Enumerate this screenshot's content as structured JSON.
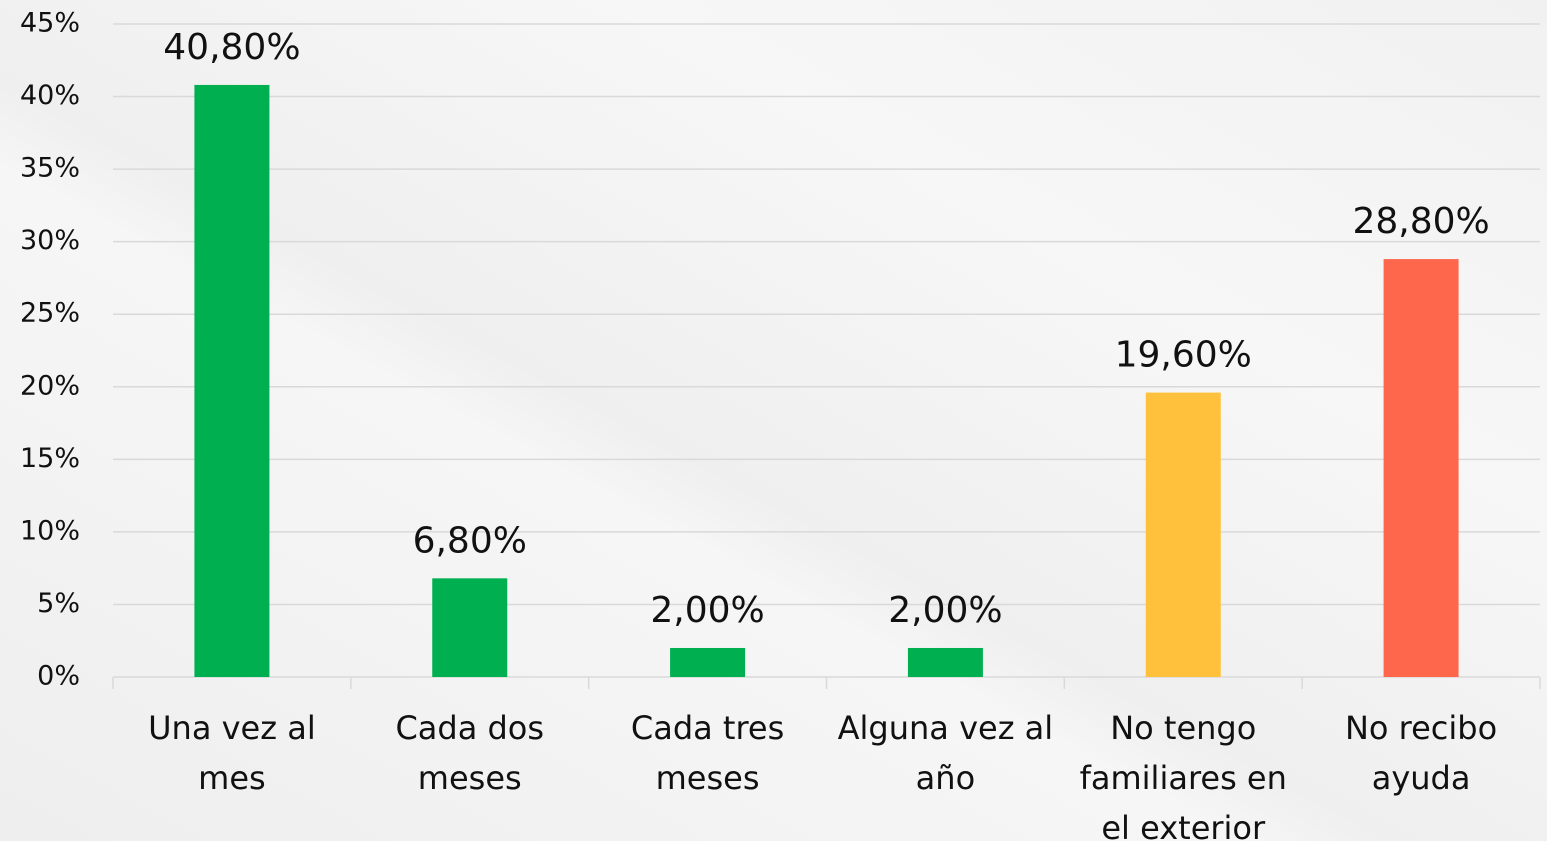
{
  "chart_data": {
    "type": "bar",
    "categories": [
      "Una vez al mes",
      "Cada dos meses",
      "Cada tres meses",
      "Alguna vez al año",
      "No tengo familiares en el exterior",
      "No recibo ayuda"
    ],
    "values": [
      40.8,
      6.8,
      2,
      2,
      19.6,
      28.8
    ],
    "value_labels": [
      "40,80%",
      "6,80%",
      "2,00%",
      "2,00%",
      "19,60%",
      "28,80%"
    ],
    "colors": [
      "#00b050",
      "#00b050",
      "#00b050",
      "#00b050",
      "#ffc13b",
      "#ff674c"
    ],
    "ylim": [
      0,
      45
    ],
    "yticks": [
      {
        "value": 0,
        "label": "0%"
      },
      {
        "value": 5,
        "label": "5%"
      },
      {
        "value": 10,
        "label": "10%"
      },
      {
        "value": 15,
        "label": "15%"
      },
      {
        "value": 20,
        "label": "20%"
      },
      {
        "value": 25,
        "label": "25%"
      },
      {
        "value": 30,
        "label": "30%"
      },
      {
        "value": 35,
        "label": "35%"
      },
      {
        "value": 40,
        "label": "40%"
      },
      {
        "value": 45,
        "label": "45%"
      }
    ],
    "grid": true
  }
}
